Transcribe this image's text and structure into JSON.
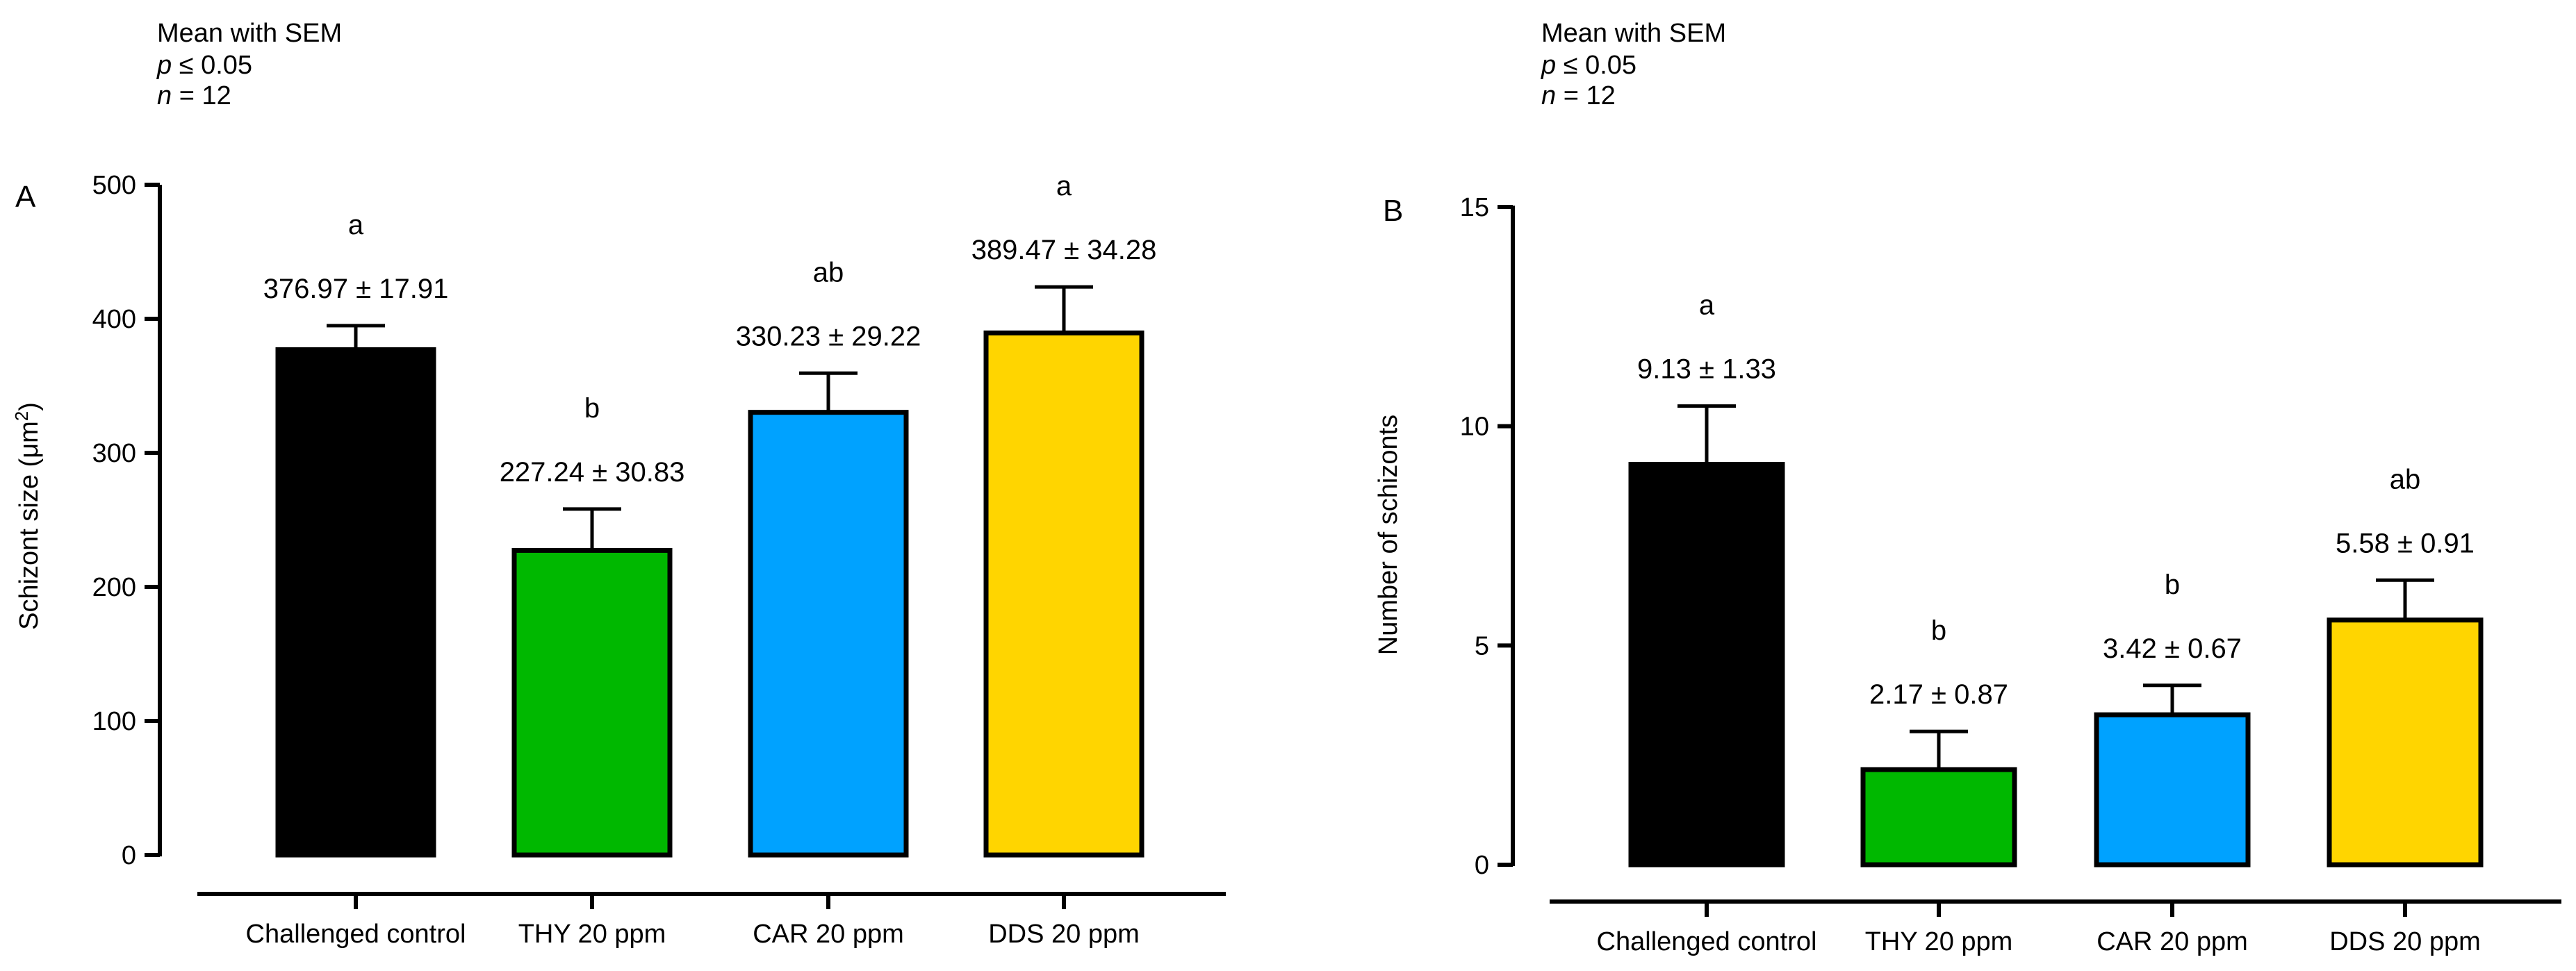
{
  "chart_data": [
    {
      "type": "bar",
      "panel": "A",
      "stats_note": {
        "line1": "Mean with SEM",
        "p_italic": "p",
        "p_rest": " ≤ 0.05",
        "n_italic": "n",
        "n_rest": " = 12"
      },
      "ylabel": "Schizont size (μm",
      "ylabel_sup": "2",
      "ylabel_close": ")",
      "xlabel": "",
      "ylim": [
        0,
        500
      ],
      "yticks": [
        0,
        100,
        200,
        300,
        400,
        500
      ],
      "ytick_labels": [
        "0",
        "100",
        "200",
        "300",
        "400",
        "500"
      ],
      "categories": [
        "Challenged control",
        "THY 20 ppm",
        "CAR 20 ppm",
        "DDS 20 ppm"
      ],
      "values": [
        376.97,
        227.24,
        330.23,
        389.47
      ],
      "errors": [
        17.91,
        30.83,
        29.22,
        34.28
      ],
      "value_labels": [
        "376.97 ± 17.91",
        "227.24 ± 30.83",
        "330.23 ± 29.22",
        "389.47 ± 34.28"
      ],
      "significance_letters": [
        "a",
        "b",
        "ab",
        "a"
      ],
      "colors": [
        "#000000",
        "#00B800",
        "#00A2FF",
        "#FFD500"
      ]
    },
    {
      "type": "bar",
      "panel": "B",
      "stats_note": {
        "line1": "Mean with SEM",
        "p_italic": "p",
        "p_rest": " ≤ 0.05",
        "n_italic": "n",
        "n_rest": " = 12"
      },
      "ylabel": "Number of schizonts",
      "xlabel": "",
      "ylim": [
        0,
        15
      ],
      "yticks": [
        0,
        5,
        10,
        15
      ],
      "ytick_labels": [
        "0",
        "5",
        "10",
        "15"
      ],
      "categories": [
        "Challenged control",
        "THY 20 ppm",
        "CAR 20 ppm",
        "DDS 20 ppm"
      ],
      "values": [
        9.13,
        2.17,
        3.42,
        5.58
      ],
      "errors": [
        1.33,
        0.87,
        0.67,
        0.91
      ],
      "value_labels": [
        "9.13 ± 1.33",
        "2.17 ± 0.87",
        "3.42 ± 0.67",
        "5.58 ± 0.91"
      ],
      "significance_letters": [
        "a",
        "b",
        "b",
        "ab"
      ],
      "colors": [
        "#000000",
        "#00B800",
        "#00A2FF",
        "#FFD500"
      ]
    }
  ]
}
